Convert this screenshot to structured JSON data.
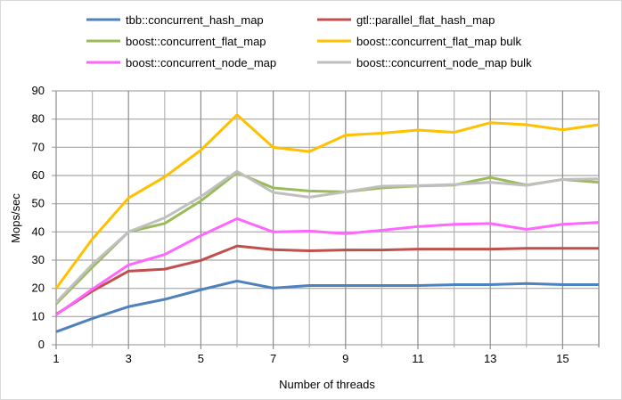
{
  "chart_data": {
    "type": "line",
    "title": "",
    "xlabel": "Number of threads",
    "ylabel": "Mops/sec",
    "x": [
      1,
      2,
      3,
      4,
      5,
      6,
      7,
      8,
      9,
      10,
      11,
      12,
      13,
      14,
      15,
      16
    ],
    "xlim": [
      1,
      16
    ],
    "ylim": [
      0,
      90
    ],
    "xticks": [
      1,
      3,
      5,
      7,
      9,
      11,
      13,
      15
    ],
    "yticks": [
      0,
      10,
      20,
      30,
      40,
      50,
      60,
      70,
      80,
      90
    ],
    "grid": true,
    "legend_position": "top",
    "series": [
      {
        "name": "tbb::concurrent_hash_map",
        "color": "#4f81bd",
        "values": [
          4.6,
          9.3,
          13.5,
          16.1,
          19.5,
          22.6,
          20.1,
          21.0,
          21.0,
          21.0,
          21.0,
          21.3,
          21.3,
          21.7,
          21.3,
          21.3
        ]
      },
      {
        "name": "gtl::parallel_flat_hash_map",
        "color": "#c0504d",
        "values": [
          10.8,
          19.0,
          26.1,
          26.8,
          29.9,
          35.0,
          33.7,
          33.3,
          33.6,
          33.6,
          33.9,
          33.9,
          33.9,
          34.2,
          34.2,
          34.2
        ]
      },
      {
        "name": "boost::concurrent_flat_map",
        "color": "#9bbb59",
        "values": [
          14.5,
          27.5,
          40.0,
          43.0,
          51.0,
          61.0,
          55.6,
          54.5,
          54.2,
          55.6,
          56.3,
          56.6,
          59.3,
          56.6,
          58.6,
          57.6
        ]
      },
      {
        "name": "boost::concurrent_flat_map bulk",
        "color": "#ffc000",
        "values": [
          20.0,
          37.5,
          52.0,
          59.5,
          69.0,
          81.5,
          70.0,
          68.5,
          74.3,
          75.0,
          76.1,
          75.3,
          78.7,
          78.0,
          76.2,
          78.0
        ]
      },
      {
        "name": "boost::concurrent_node_map",
        "color": "#ff66ff",
        "values": [
          10.6,
          19.7,
          28.3,
          32.0,
          38.7,
          44.7,
          40.0,
          40.3,
          39.4,
          40.6,
          41.9,
          42.7,
          43.0,
          40.9,
          42.7,
          43.4
        ]
      },
      {
        "name": "boost::concurrent_node_map bulk",
        "color": "#bfbfbf",
        "values": [
          15.0,
          28.5,
          40.0,
          45.0,
          52.5,
          61.5,
          54.0,
          52.3,
          54.2,
          56.2,
          56.4,
          56.8,
          57.6,
          56.5,
          58.6,
          58.8
        ]
      }
    ]
  }
}
